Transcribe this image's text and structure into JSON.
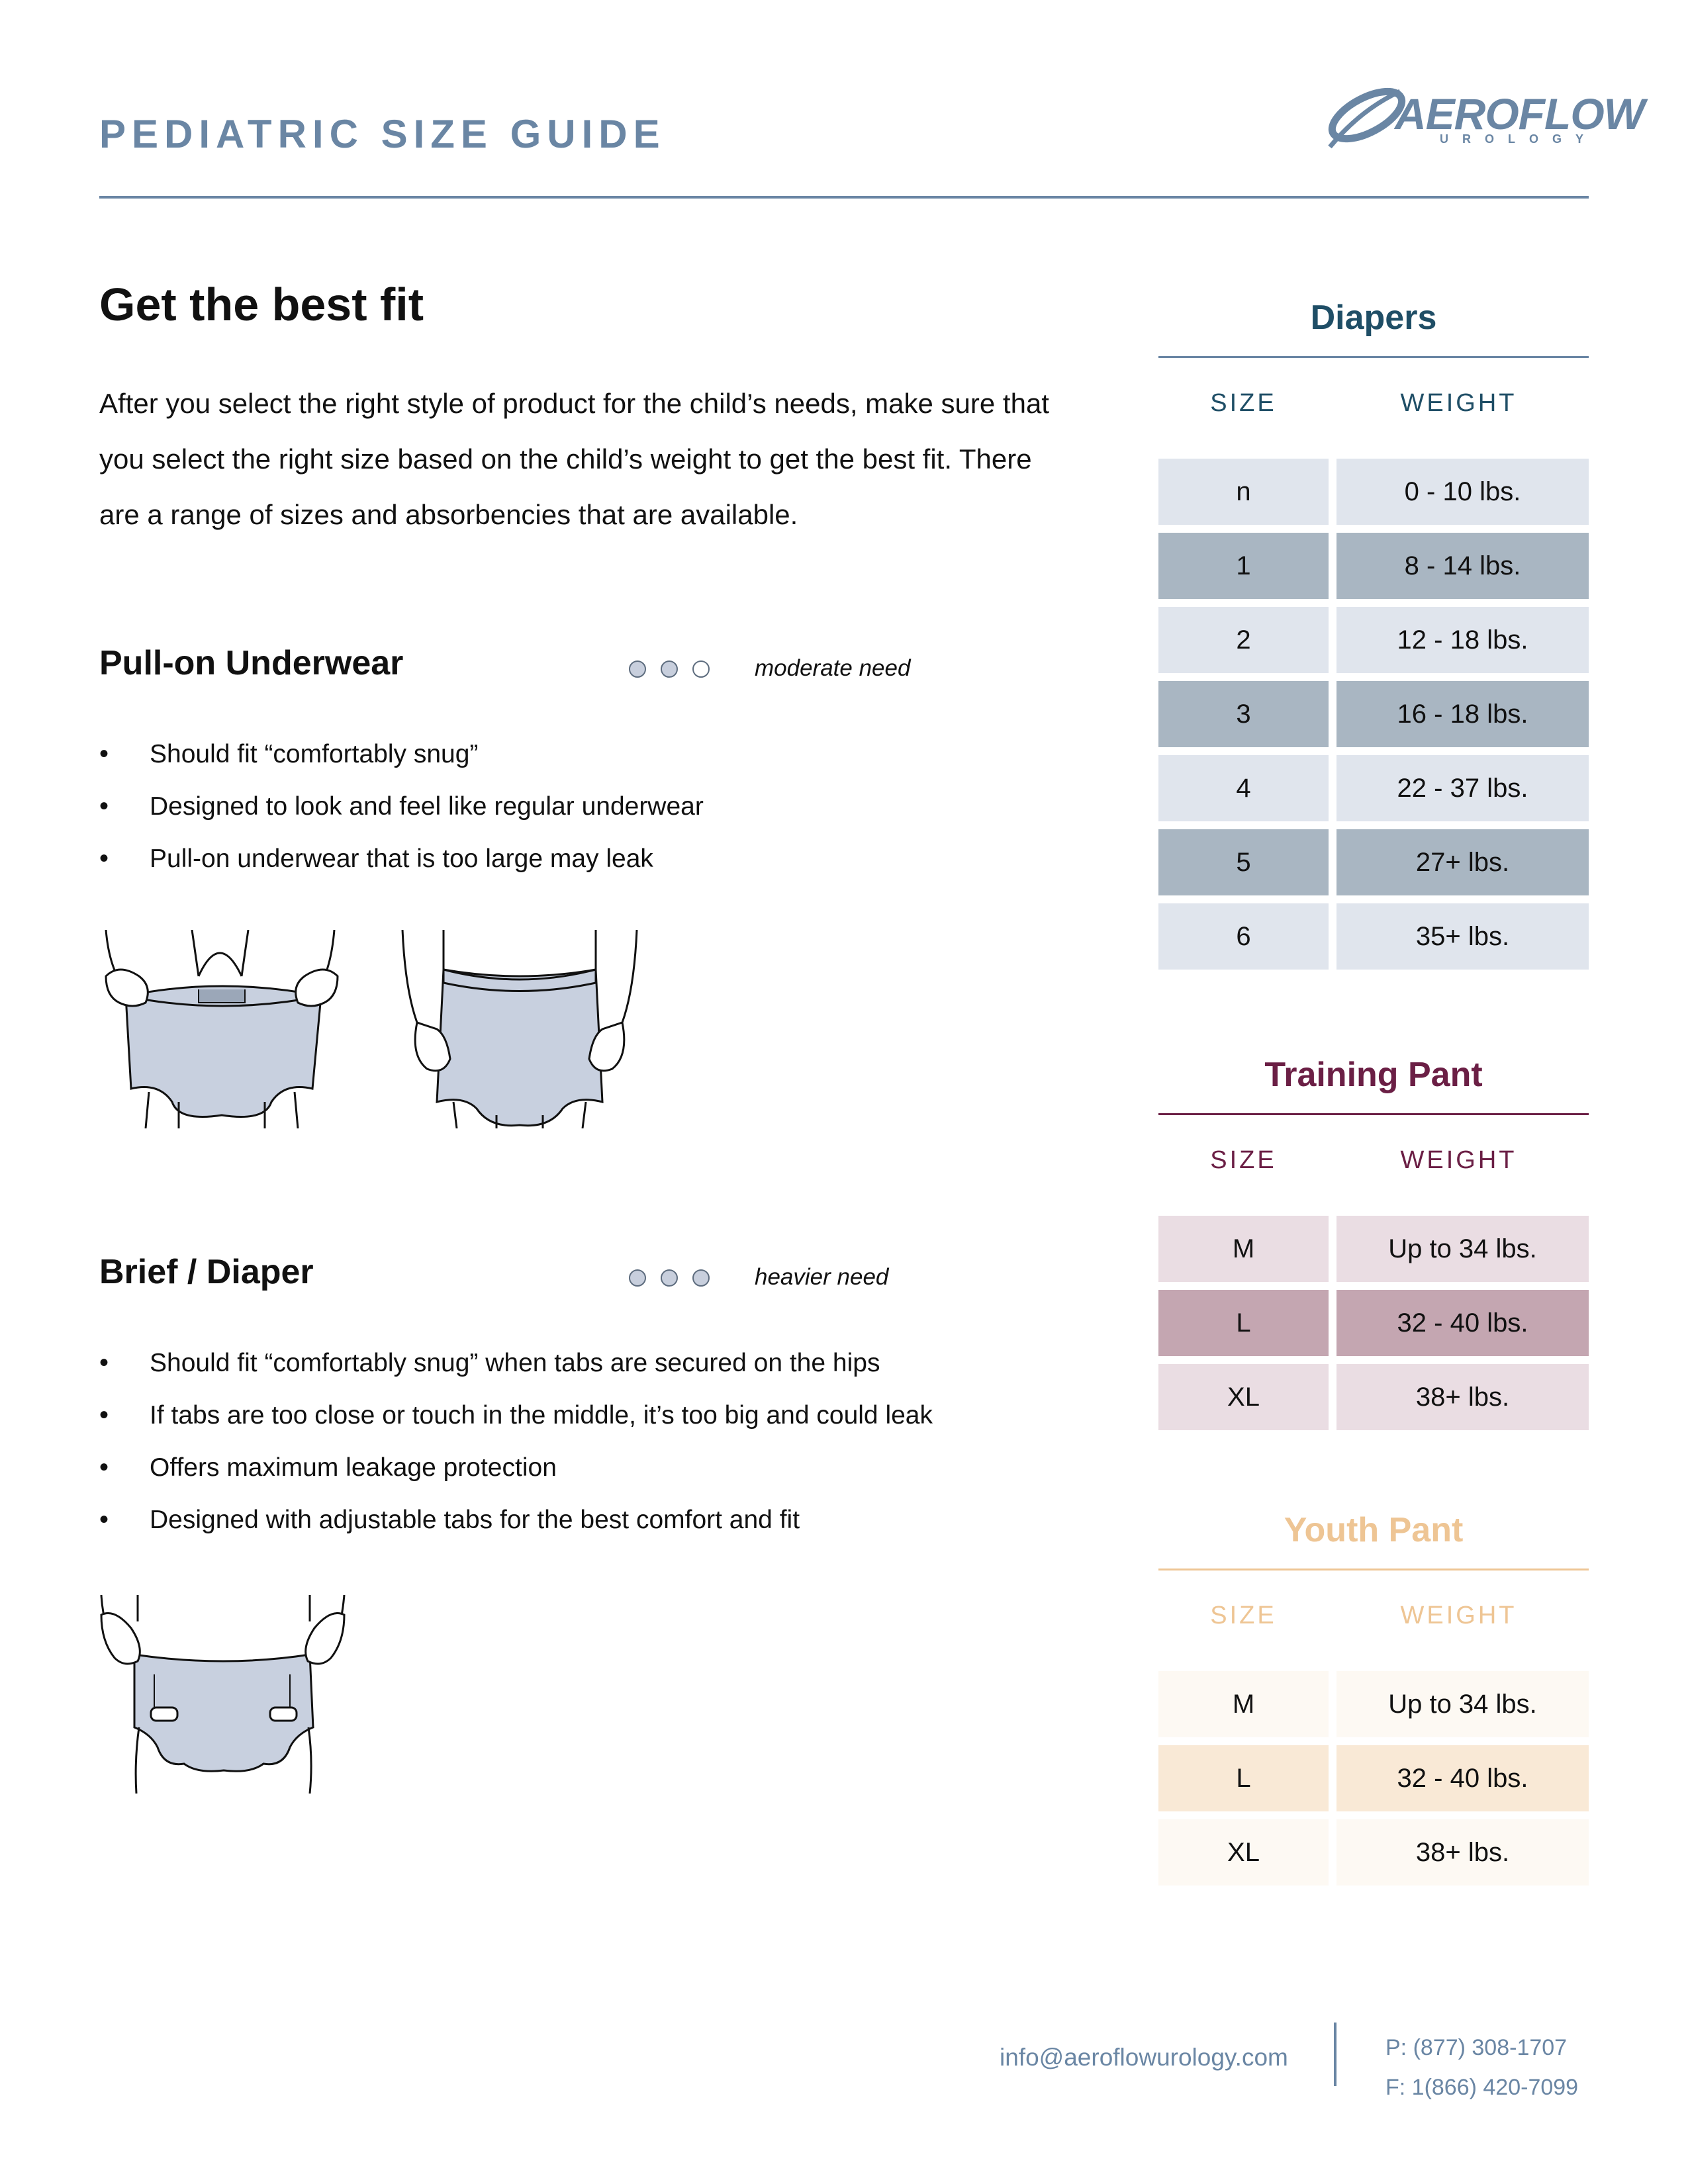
{
  "header": {
    "title": "PEDIATRIC SIZE GUIDE",
    "logo_text": "AEROFLOW",
    "logo_subtext": "UROLOGY"
  },
  "intro": {
    "heading": "Get the best fit",
    "body": "After you select the right style of product for the child’s needs, make sure that you select the right size based on the child’s weight to get the best fit. There are a range of sizes and absorbencies that are available."
  },
  "pullon": {
    "title": "Pull-on Underwear",
    "level_filled": 2,
    "level_total": 3,
    "need_label": "moderate need",
    "bullets": [
      "Should fit “comfortably snug”",
      "Designed to look and feel like regular underwear",
      "Pull-on underwear that is too large may leak"
    ]
  },
  "brief": {
    "title": "Brief / Diaper",
    "level_filled": 3,
    "level_total": 3,
    "need_label": "heavier need",
    "bullets": [
      "Should fit “comfortably snug” when tabs are secured on the hips",
      "If tabs are too close or touch in the middle, it’s too big and could leak",
      "Offers maximum leakage protection",
      "Designed with adjustable tabs for the best comfort and fit"
    ]
  },
  "tables": {
    "diapers": {
      "title": "Diapers",
      "size_header": "SIZE",
      "weight_header": "WEIGHT",
      "rows": [
        {
          "size": "n",
          "weight": "0 - 10 lbs."
        },
        {
          "size": "1",
          "weight": "8 - 14 lbs."
        },
        {
          "size": "2",
          "weight": "12 - 18 lbs."
        },
        {
          "size": "3",
          "weight": "16 - 18 lbs."
        },
        {
          "size": "4",
          "weight": "22 - 37 lbs."
        },
        {
          "size": "5",
          "weight": "27+ lbs."
        },
        {
          "size": "6",
          "weight": "35+ lbs."
        }
      ]
    },
    "training": {
      "title": "Training Pant",
      "size_header": "SIZE",
      "weight_header": "WEIGHT",
      "rows": [
        {
          "size": "M",
          "weight": "Up to 34 lbs."
        },
        {
          "size": "L",
          "weight": "32 - 40 lbs."
        },
        {
          "size": "XL",
          "weight": "38+ lbs."
        }
      ]
    },
    "youth": {
      "title": "Youth Pant",
      "size_header": "SIZE",
      "weight_header": "WEIGHT",
      "rows": [
        {
          "size": "M",
          "weight": "Up to 34 lbs."
        },
        {
          "size": "L",
          "weight": "32 - 40 lbs."
        },
        {
          "size": "XL",
          "weight": "38+ lbs."
        }
      ]
    }
  },
  "footer": {
    "email": "info@aeroflowurology.com",
    "phone": "P: (877) 308-1707",
    "fax": "F: 1(866) 420-7099"
  },
  "colors": {
    "brand_blue": "#6a86a4",
    "diapers_accent": "#1f4e66",
    "diapers_light": "#e0e5ed",
    "diapers_dark": "#a9b6c2",
    "training_accent": "#6b1f45",
    "training_light": "#eadde3",
    "training_dark": "#c4a6b1",
    "youth_accent": "#eec594",
    "youth_light": "#fdf9f3",
    "youth_dark": "#f9e9d6",
    "illustration_fill": "#c8d0df"
  }
}
